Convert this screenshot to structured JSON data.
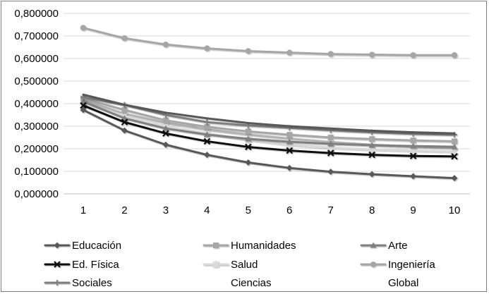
{
  "chart_data": {
    "type": "line",
    "title": "",
    "xlabel": "",
    "ylabel": "",
    "x": [
      1,
      2,
      3,
      4,
      5,
      6,
      7,
      8,
      9,
      10
    ],
    "x_tick_labels": [
      "1",
      "2",
      "3",
      "4",
      "5",
      "6",
      "7",
      "8",
      "9",
      "10"
    ],
    "ylim": [
      0,
      0.8
    ],
    "y_ticks": [
      0,
      0.1,
      0.2,
      0.3,
      0.4,
      0.5,
      0.6,
      0.7,
      0.8
    ],
    "y_tick_labels": [
      "0,000000",
      "0,100000",
      "0,200000",
      "0,300000",
      "0,400000",
      "0,500000",
      "0,600000",
      "0,700000",
      "0,800000"
    ],
    "grid": "horizontal",
    "legend_position": "bottom",
    "series": [
      {
        "name": "Educación",
        "color": "#595959",
        "marker": "diamond",
        "values": [
          0.372,
          0.281,
          0.218,
          0.173,
          0.139,
          0.115,
          0.098,
          0.087,
          0.078,
          0.07
        ]
      },
      {
        "name": "Humanidades",
        "color": "#a6a6a6",
        "marker": "square",
        "values": [
          0.423,
          0.372,
          0.326,
          0.297,
          0.277,
          0.262,
          0.25,
          0.243,
          0.237,
          0.233
        ]
      },
      {
        "name": "Arte",
        "color": "#808080",
        "marker": "triangle",
        "values": [
          0.41,
          0.335,
          0.29,
          0.263,
          0.244,
          0.231,
          0.222,
          0.216,
          0.212,
          0.209
        ]
      },
      {
        "name": "Ed. Física",
        "color": "#111111",
        "marker": "x",
        "values": [
          0.392,
          0.318,
          0.268,
          0.233,
          0.208,
          0.192,
          0.181,
          0.173,
          0.168,
          0.166
        ]
      },
      {
        "name": "Salud",
        "color": "#d9d9d9",
        "marker": "star",
        "values": [
          0.405,
          0.345,
          0.3,
          0.268,
          0.24,
          0.218,
          0.205,
          0.197,
          0.192,
          0.188
        ]
      },
      {
        "name": "Ingeniería",
        "color": "#a6a6a6",
        "marker": "circle",
        "values": [
          0.736,
          0.69,
          0.662,
          0.645,
          0.633,
          0.626,
          0.62,
          0.617,
          0.615,
          0.615
        ]
      },
      {
        "name": "Sociales",
        "color": "#7f7f7f",
        "marker": "plus",
        "values": [
          0.428,
          0.395,
          0.35,
          0.318,
          0.303,
          0.293,
          0.282,
          0.273,
          0.266,
          0.262
        ]
      },
      {
        "name": "Ciencias",
        "color": "#595959",
        "marker": "none",
        "values": [
          0.44,
          0.395,
          0.36,
          0.335,
          0.314,
          0.3,
          0.29,
          0.28,
          0.273,
          0.268
        ]
      },
      {
        "name": "Global",
        "color": "#b3b3b3",
        "marker": "none",
        "values": [
          0.415,
          0.355,
          0.315,
          0.285,
          0.263,
          0.245,
          0.23,
          0.218,
          0.21,
          0.203
        ]
      }
    ]
  }
}
